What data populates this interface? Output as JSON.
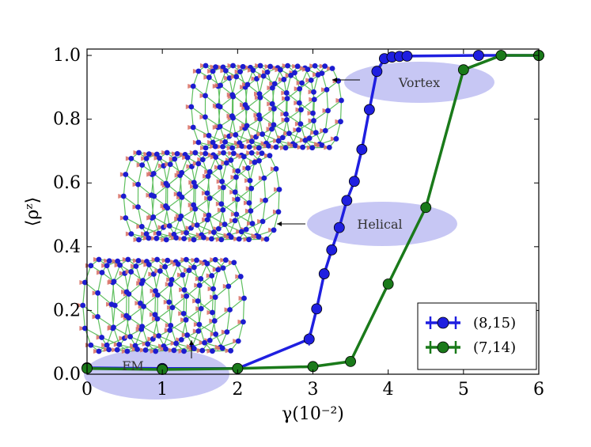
{
  "chart_data": {
    "type": "line",
    "xlabel": "γ(10⁻²)",
    "ylabel": "⟨ρᶻ⟩",
    "xlim": [
      0,
      6
    ],
    "ylim": [
      0,
      1.02
    ],
    "xticks": [
      "0",
      "1",
      "2",
      "3",
      "4",
      "5",
      "6"
    ],
    "yticks": [
      "0.0",
      "0.2",
      "0.4",
      "0.6",
      "0.8",
      "1.0"
    ],
    "grid": false,
    "legend_position": "bottom-right",
    "series": [
      {
        "name": "(8,15)",
        "color": "#1f1fe0",
        "x": [
          0,
          1,
          2,
          2.95,
          3.05,
          3.15,
          3.25,
          3.35,
          3.45,
          3.55,
          3.65,
          3.75,
          3.85,
          3.95,
          4.05,
          4.15,
          4.25,
          5.2,
          6.0
        ],
        "y": [
          0.02,
          0.018,
          0.018,
          0.11,
          0.205,
          0.315,
          0.39,
          0.46,
          0.545,
          0.605,
          0.705,
          0.83,
          0.95,
          0.99,
          0.995,
          0.997,
          0.998,
          1.0,
          1.0
        ]
      },
      {
        "name": "(7,14)",
        "color": "#1a7a1a",
        "x": [
          0,
          1,
          2,
          3,
          3.5,
          4,
          4.5,
          5,
          5.5,
          6
        ],
        "y": [
          0.018,
          0.015,
          0.018,
          0.024,
          0.04,
          0.283,
          0.523,
          0.955,
          1.0,
          1.0
        ]
      }
    ],
    "annotations": [
      {
        "label": "Vortex",
        "x": 4.8,
        "y": 0.92
      },
      {
        "label": "Helical",
        "x": 4.1,
        "y": 0.485
      },
      {
        "label": "FM",
        "x": 0.6,
        "y": 0.03
      }
    ]
  },
  "colors": {
    "ellipse_fill": "#b4b4f0",
    "insert_rod": "#5fbf5f",
    "insert_node": "#1c1cd0",
    "insert_arrow": "#d9766c"
  }
}
